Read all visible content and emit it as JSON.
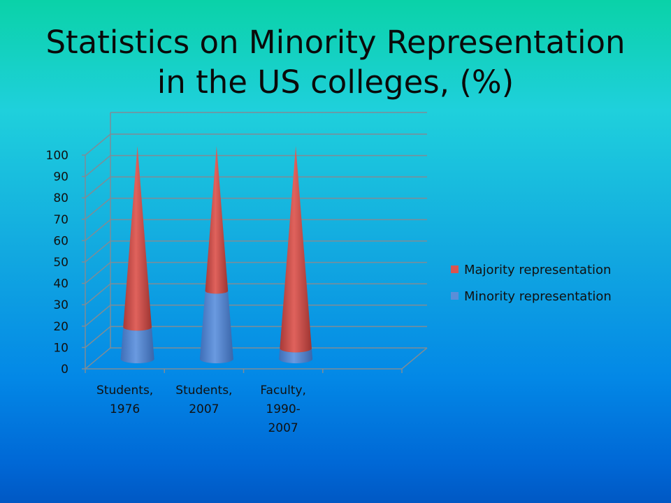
{
  "slide": {
    "title_line1": "Statistics on Minority Representation",
    "title_line2": "in the US colleges, (%)"
  },
  "chart_data": {
    "type": "bar",
    "subtype": "3d-stacked-cone",
    "title": "Statistics on Minority Representation in the US colleges, (%)",
    "categories": [
      [
        "Students,",
        "1976"
      ],
      [
        "Students,",
        "2007"
      ],
      [
        "Faculty,",
        "1990-",
        "2007"
      ]
    ],
    "series": [
      {
        "name": "Minority representation",
        "values": [
          15,
          32,
          5
        ],
        "color": "#5b8ed8"
      },
      {
        "name": "Majority representation",
        "values": [
          85,
          68,
          95
        ],
        "color": "#d9544f"
      }
    ],
    "ylim": [
      0,
      100
    ],
    "yticks": [
      "0",
      "10",
      "20",
      "30",
      "40",
      "50",
      "60",
      "70",
      "80",
      "90",
      "100"
    ],
    "grid": true,
    "legend": "right",
    "legend_order": [
      "Majority representation",
      "Minority representation"
    ]
  }
}
